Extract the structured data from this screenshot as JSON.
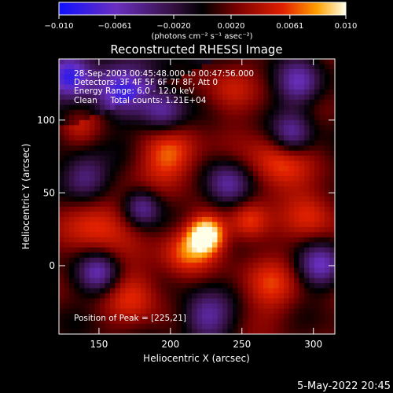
{
  "chart_data": {
    "type": "heatmap",
    "title": "Reconstructed RHESSI Image",
    "xlabel": "Heliocentric X (arcsec)",
    "ylabel": "Heliocentric Y (arcsec)",
    "xlim": [
      122,
      315
    ],
    "ylim": [
      -47,
      142
    ],
    "x_ticks": [
      150,
      200,
      250,
      300
    ],
    "y_ticks": [
      0,
      50,
      100
    ],
    "colorbar": {
      "label": "(photons cm⁻² s⁻¹ asec⁻²)",
      "range": [
        -0.01,
        0.01
      ],
      "tick_values": [
        -0.01,
        -0.0061,
        -0.002,
        0.002,
        0.0061,
        0.01
      ],
      "tick_labels": [
        "−0.010",
        "−0.0061",
        "−0.0020",
        "0.0020",
        "0.0061",
        "0.010"
      ]
    },
    "peak": [
      225,
      21
    ],
    "info_lines": [
      "28-Sep-2003 00:45:48.000 to 00:47:56.000",
      "Detectors: 3F 4F 5F 6F 7F 8F, Att 0",
      "Energy Range: 6.0 - 12.0 keV",
      "Clean     Total counts: 1.21E+04"
    ],
    "peak_label": "Position of Peak = [225,21]"
  },
  "footer_timestamp": "5-May-2022 20:45",
  "colors": {
    "background": "#000000",
    "foreground": "#ffffff"
  }
}
